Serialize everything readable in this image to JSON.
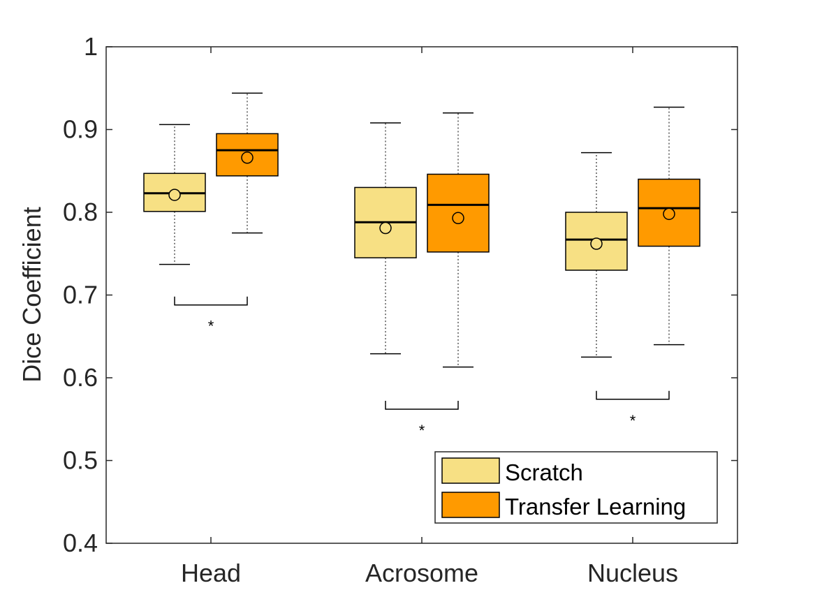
{
  "chart_data": {
    "type": "box",
    "ylabel": "Dice Coefficient",
    "ylim": [
      0.4,
      1.0
    ],
    "yticks": [
      "0.4",
      "0.5",
      "0.6",
      "0.7",
      "0.8",
      "0.9",
      "1"
    ],
    "categories": [
      "Head",
      "Acrosome",
      "Nucleus"
    ],
    "grid": false,
    "legend_position": "bottom-right",
    "colors": {
      "Scratch": "#f7e084",
      "Transfer Learning": "#ff9a00"
    },
    "series": [
      {
        "name": "Scratch",
        "boxes": [
          {
            "min": 0.737,
            "q1": 0.801,
            "median": 0.823,
            "q3": 0.847,
            "max": 0.906,
            "mean": 0.821
          },
          {
            "min": 0.629,
            "q1": 0.745,
            "median": 0.788,
            "q3": 0.83,
            "max": 0.908,
            "mean": 0.781
          },
          {
            "min": 0.625,
            "q1": 0.73,
            "median": 0.767,
            "q3": 0.8,
            "max": 0.872,
            "mean": 0.762
          }
        ]
      },
      {
        "name": "Transfer Learning",
        "boxes": [
          {
            "min": 0.775,
            "q1": 0.844,
            "median": 0.875,
            "q3": 0.895,
            "max": 0.944,
            "mean": 0.866
          },
          {
            "min": 0.613,
            "q1": 0.752,
            "median": 0.809,
            "q3": 0.846,
            "max": 0.92,
            "mean": 0.793
          },
          {
            "min": 0.64,
            "q1": 0.759,
            "median": 0.805,
            "q3": 0.84,
            "max": 0.927,
            "mean": 0.798
          }
        ]
      }
    ],
    "significance": [
      {
        "category": "Head",
        "y": 0.688,
        "label": "*"
      },
      {
        "category": "Acrosome",
        "y": 0.562,
        "label": "*"
      },
      {
        "category": "Nucleus",
        "y": 0.574,
        "label": "*"
      }
    ]
  }
}
